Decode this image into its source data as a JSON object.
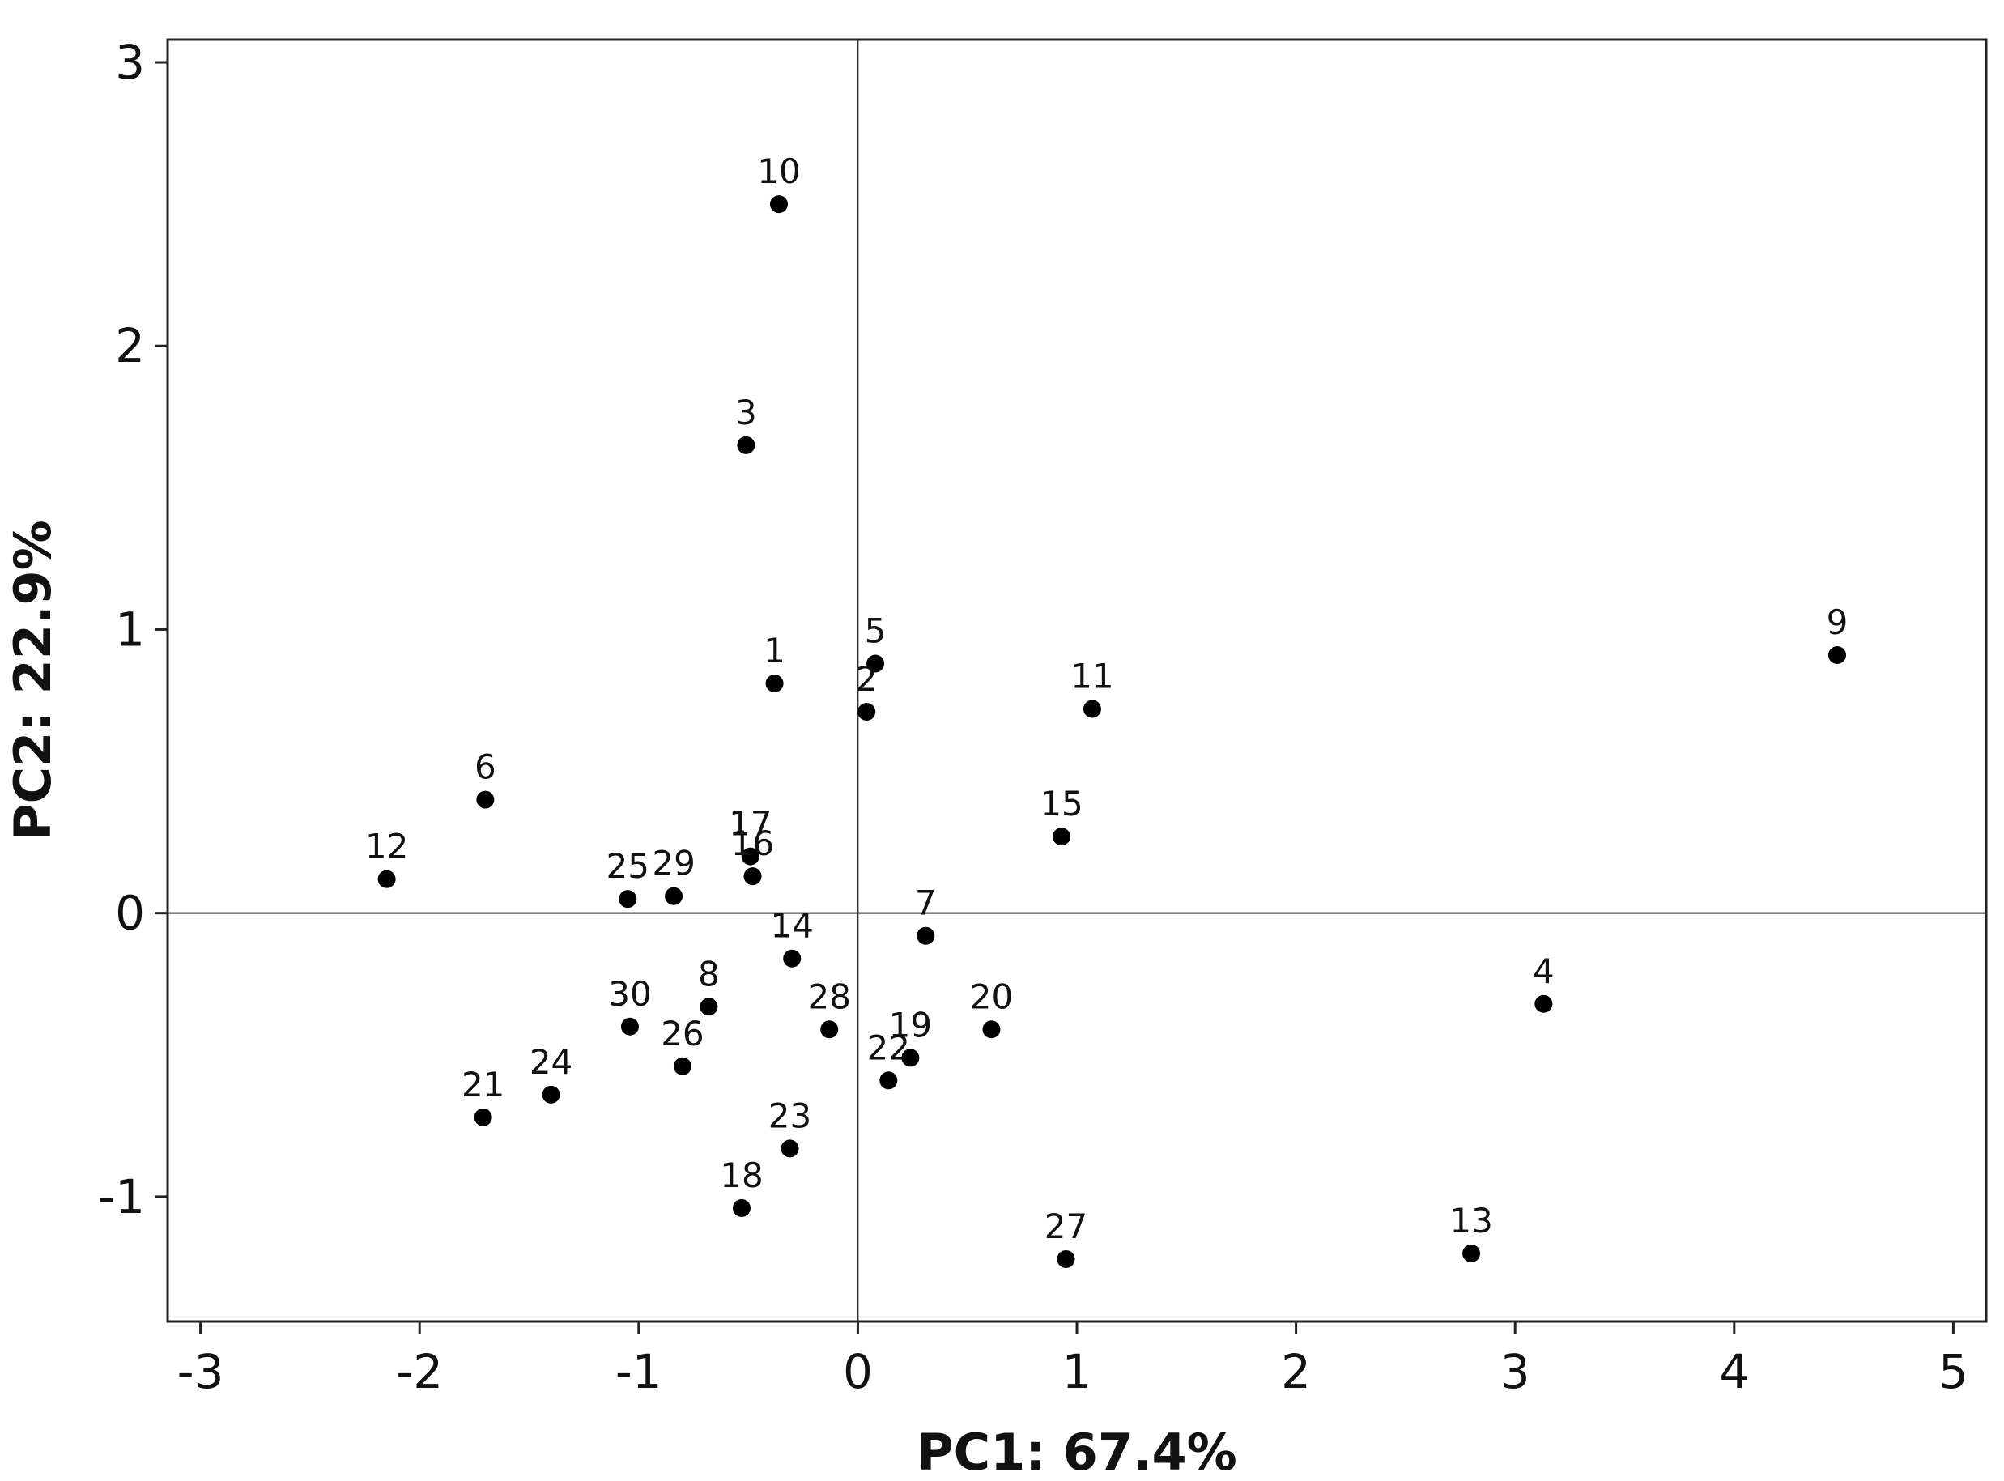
{
  "chart_data": {
    "type": "scatter",
    "title": "",
    "xlabel": "PC1: 67.4%",
    "ylabel": "PC2: 22.9%",
    "xlim": [
      -3.15,
      5.15
    ],
    "ylim": [
      -1.44,
      3.08
    ],
    "x_ticks": [
      -3,
      -2,
      -1,
      0,
      1,
      2,
      3,
      4,
      5
    ],
    "y_ticks": [
      -1,
      0,
      1,
      2,
      3
    ],
    "reference_lines": {
      "x": 0,
      "y": 0
    },
    "grid": false,
    "legend": "none",
    "marker_color": "#000000",
    "points": [
      {
        "label": "1",
        "x": -0.38,
        "y": 0.81
      },
      {
        "label": "2",
        "x": 0.04,
        "y": 0.71
      },
      {
        "label": "3",
        "x": -0.51,
        "y": 1.65
      },
      {
        "label": "4",
        "x": 3.13,
        "y": -0.32
      },
      {
        "label": "5",
        "x": 0.08,
        "y": 0.88
      },
      {
        "label": "6",
        "x": -1.7,
        "y": 0.4
      },
      {
        "label": "7",
        "x": 0.31,
        "y": -0.08
      },
      {
        "label": "8",
        "x": -0.68,
        "y": -0.33
      },
      {
        "label": "9",
        "x": 4.47,
        "y": 0.91
      },
      {
        "label": "10",
        "x": -0.36,
        "y": 2.5
      },
      {
        "label": "11",
        "x": 1.07,
        "y": 0.72
      },
      {
        "label": "12",
        "x": -2.15,
        "y": 0.12
      },
      {
        "label": "13",
        "x": 2.8,
        "y": -1.2
      },
      {
        "label": "14",
        "x": -0.3,
        "y": -0.16
      },
      {
        "label": "15",
        "x": 0.93,
        "y": 0.27
      },
      {
        "label": "16",
        "x": -0.48,
        "y": 0.13
      },
      {
        "label": "17",
        "x": -0.49,
        "y": 0.2
      },
      {
        "label": "18",
        "x": -0.53,
        "y": -1.04
      },
      {
        "label": "19",
        "x": 0.24,
        "y": -0.51
      },
      {
        "label": "20",
        "x": 0.61,
        "y": -0.41
      },
      {
        "label": "21",
        "x": -1.71,
        "y": -0.72
      },
      {
        "label": "22",
        "x": 0.14,
        "y": -0.59
      },
      {
        "label": "23",
        "x": -0.31,
        "y": -0.83
      },
      {
        "label": "24",
        "x": -1.4,
        "y": -0.64
      },
      {
        "label": "25",
        "x": -1.05,
        "y": 0.05
      },
      {
        "label": "26",
        "x": -0.8,
        "y": -0.54
      },
      {
        "label": "27",
        "x": 0.95,
        "y": -1.22
      },
      {
        "label": "28",
        "x": -0.13,
        "y": -0.41
      },
      {
        "label": "29",
        "x": -0.84,
        "y": 0.06
      },
      {
        "label": "30",
        "x": -1.04,
        "y": -0.4
      }
    ]
  }
}
